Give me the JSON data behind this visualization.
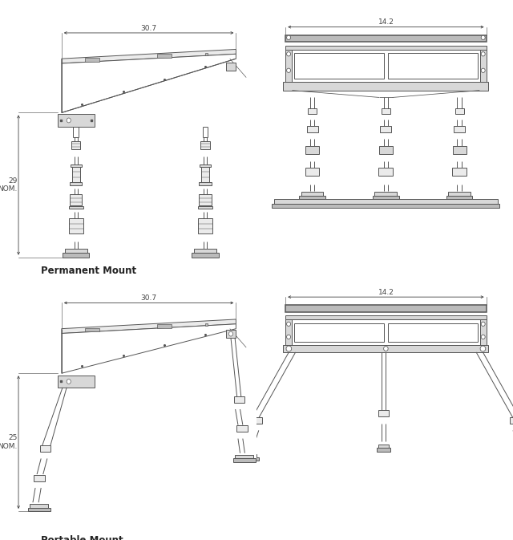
{
  "background_color": "#ffffff",
  "line_color": "#555555",
  "dim_color": "#444444",
  "text_color": "#222222",
  "label_permanent": "Permanent Mount",
  "label_portable": "Portable Mount",
  "dim_307": "30.7",
  "dim_142": "14.2",
  "dim_29": "29\nNOM.",
  "dim_25": "25\nNOM.",
  "lw": 0.7,
  "lw_thick": 1.1,
  "gray_fill": "#d8d8d8",
  "gray_light": "#ebebeb",
  "gray_dark": "#bbbbbb"
}
